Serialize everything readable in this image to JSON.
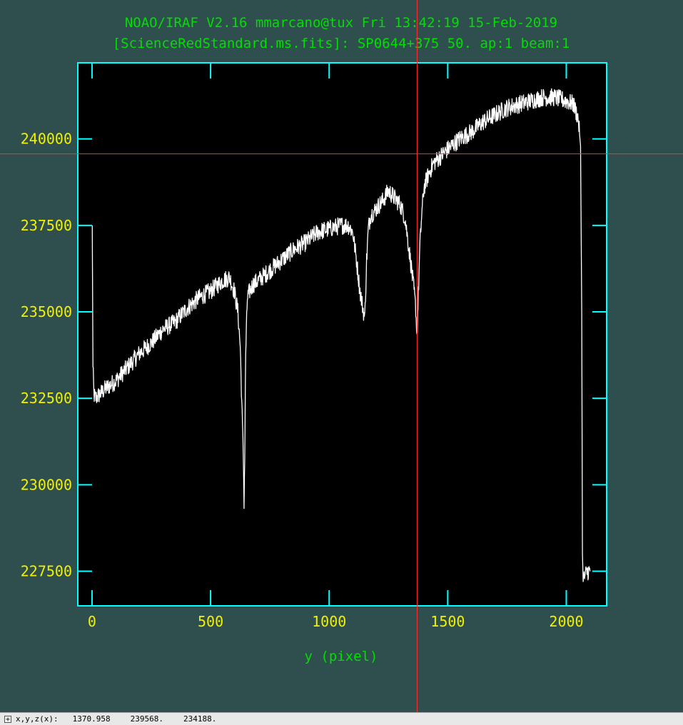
{
  "window": {
    "title_line1": "NOAO/IRAF V2.16 mmarcano@tux Fri 13:42:19 15-Feb-2019",
    "title_line2": "[ScienceRedStandard.ms.fits]: SP0644+375 50. ap:1 beam:1"
  },
  "colors": {
    "background": "#2f4f4f",
    "plot_area": "#000000",
    "frame": "#00ffff",
    "spectrum": "#ffffff",
    "cursor": "#ff3030",
    "tick_labels": "#f0f000",
    "title_and_axis_label": "#00dd00"
  },
  "cursor": {
    "x": 1370.958,
    "y": 239568
  },
  "status_bar": {
    "toggle_icon": "+",
    "label": "x,y,z(x):",
    "x": "1370.958",
    "y": "239568.",
    "z": "234188."
  },
  "chart_data": {
    "type": "line",
    "title": "NOAO/IRAF V2.16 mmarcano@tux Fri 13:42:19 15-Feb-2019",
    "subtitle": "[ScienceRedStandard.ms.fits]: SP0644+375 50. ap:1 beam:1",
    "xlabel": "y (pixel)",
    "ylabel": "",
    "xlim": [
      -60,
      2170
    ],
    "ylim": [
      226500,
      242200
    ],
    "xticks": [
      {
        "value": 0,
        "label": "0"
      },
      {
        "value": 500,
        "label": "500"
      },
      {
        "value": 1000,
        "label": "1000"
      },
      {
        "value": 1500,
        "label": "1500"
      },
      {
        "value": 2000,
        "label": "2000"
      }
    ],
    "yticks": [
      {
        "value": 227500,
        "label": "227500"
      },
      {
        "value": 230000,
        "label": "230000"
      },
      {
        "value": 232500,
        "label": "232500"
      },
      {
        "value": 235000,
        "label": "235000"
      },
      {
        "value": 237500,
        "label": "237500"
      },
      {
        "value": 240000,
        "label": "240000"
      }
    ],
    "grid": false,
    "series": [
      {
        "x": [
          1,
          4,
          8,
          15,
          30,
          60,
          100,
          150,
          200,
          250,
          300,
          350,
          400,
          450,
          500,
          550,
          580,
          600,
          615,
          625,
          633,
          638,
          641,
          644,
          648,
          655,
          665,
          680,
          700,
          750,
          800,
          850,
          900,
          950,
          1000,
          1050,
          1080,
          1100,
          1115,
          1130,
          1145,
          1150,
          1158,
          1165,
          1175,
          1190,
          1200,
          1225,
          1250,
          1275,
          1300,
          1320,
          1335,
          1348,
          1358,
          1365,
          1370,
          1376,
          1382,
          1390,
          1400,
          1420,
          1440,
          1470,
          1500,
          1550,
          1600,
          1650,
          1700,
          1750,
          1800,
          1850,
          1900,
          1950,
          2000,
          2030,
          2050,
          2060,
          2065,
          2068,
          2071,
          2075,
          2080,
          2090,
          2100
        ],
        "y": [
          237500,
          233400,
          232600,
          232500,
          232600,
          232800,
          233000,
          233400,
          233800,
          234100,
          234500,
          234700,
          235100,
          235400,
          235600,
          235900,
          236000,
          235600,
          235000,
          234000,
          232000,
          230800,
          229500,
          230800,
          233800,
          235400,
          235600,
          235800,
          235900,
          236200,
          236500,
          236800,
          237000,
          237300,
          237400,
          237500,
          237500,
          237300,
          236500,
          235600,
          235000,
          234800,
          236500,
          237400,
          237800,
          237900,
          238000,
          238200,
          238500,
          238300,
          238100,
          237700,
          236900,
          236200,
          235600,
          235100,
          234300,
          235500,
          236800,
          237800,
          238600,
          239000,
          239300,
          239500,
          239700,
          240000,
          240200,
          240500,
          240700,
          240900,
          241000,
          241100,
          241200,
          241200,
          241100,
          241000,
          240600,
          239800,
          235000,
          228000,
          227200,
          227300,
          227400,
          227500,
          227500
        ]
      }
    ]
  }
}
